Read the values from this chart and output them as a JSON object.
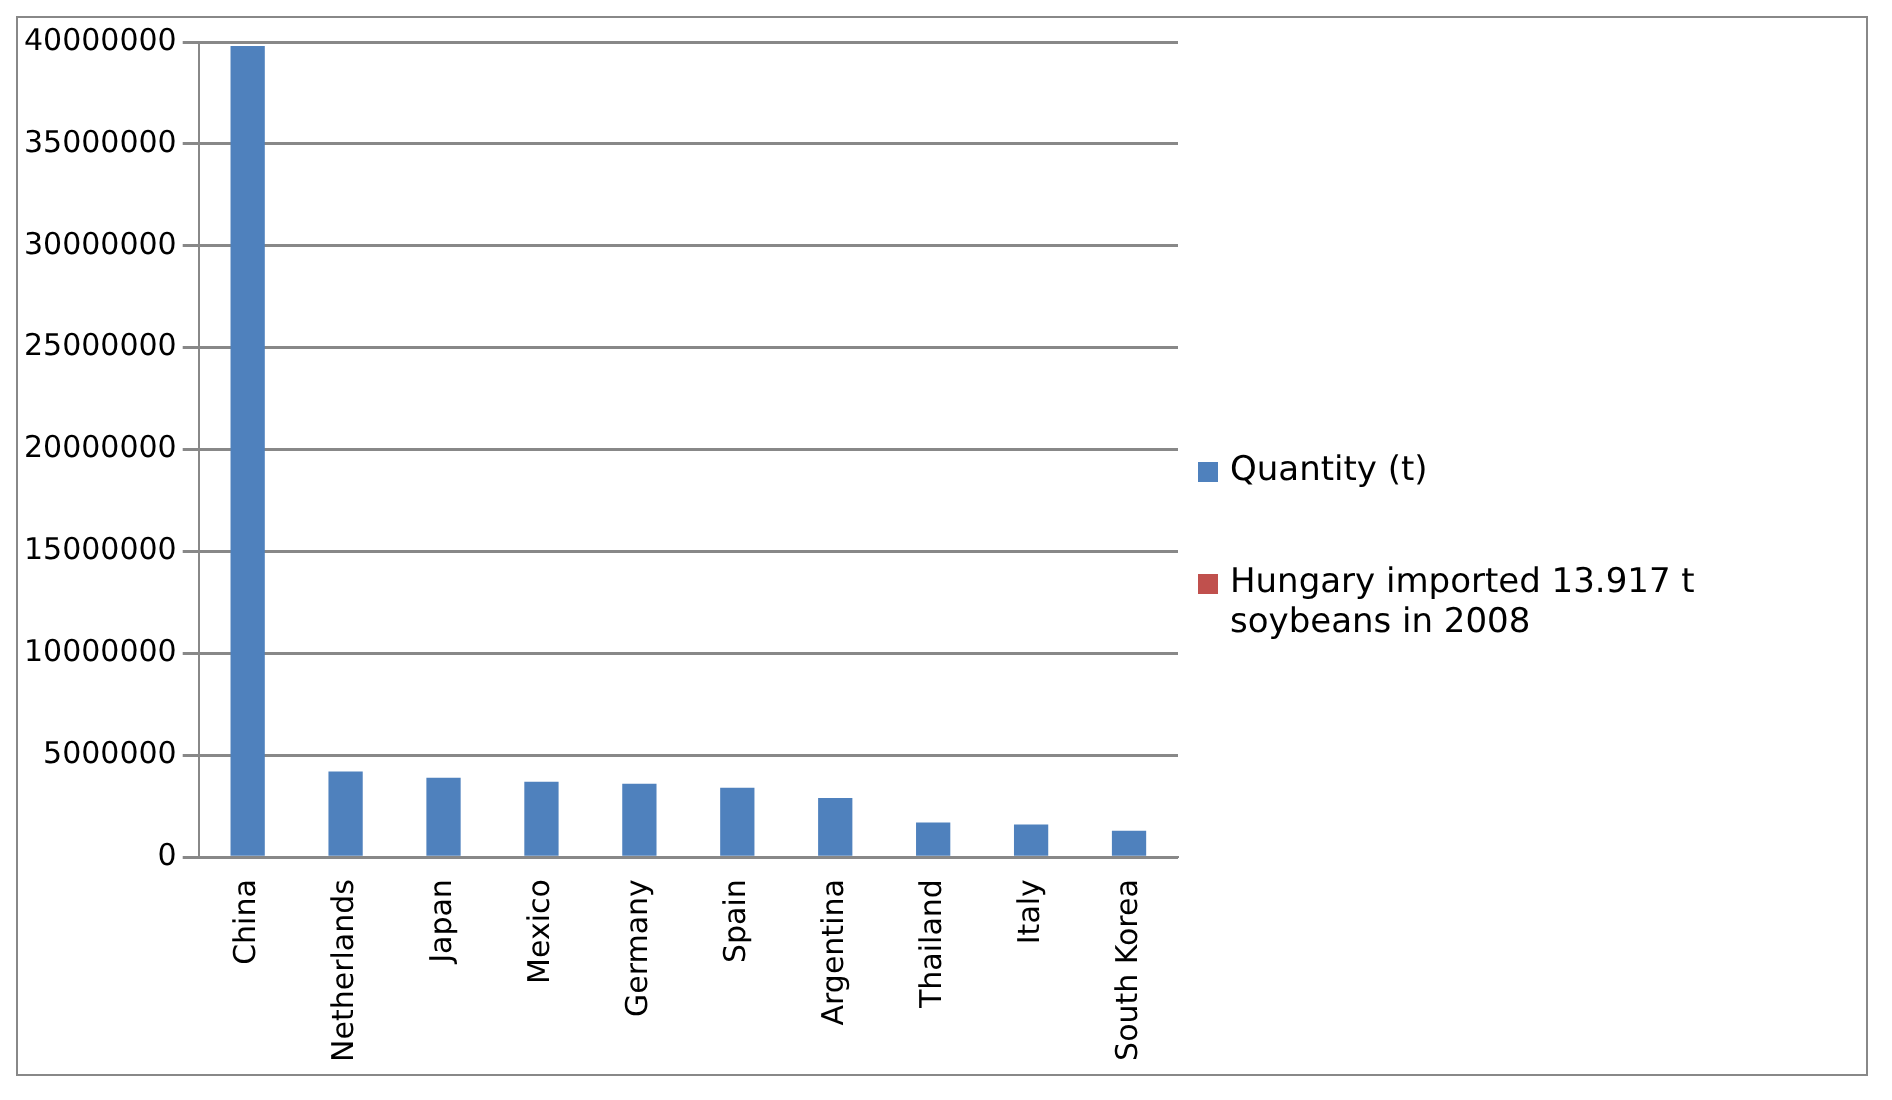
{
  "chart_data": {
    "type": "bar",
    "categories": [
      "China",
      "Netherlands",
      "Japan",
      "Mexico",
      "Germany",
      "Spain",
      "Argentina",
      "Thailand",
      "Italy",
      "South Korea"
    ],
    "series": [
      {
        "name": "Quantity (t)",
        "color": "#4f81bd",
        "values": [
          39800000,
          4200000,
          3900000,
          3700000,
          3600000,
          3400000,
          2900000,
          1700000,
          1600000,
          1300000
        ]
      },
      {
        "name": "Hungary imported 13.917 t soybeans in 2008",
        "color": "#c0504d",
        "values": [
          null,
          null,
          null,
          null,
          null,
          null,
          null,
          null,
          null,
          null
        ]
      }
    ],
    "ylim": [
      0,
      40000000
    ],
    "yticks": [
      0,
      5000000,
      10000000,
      15000000,
      20000000,
      25000000,
      30000000,
      35000000,
      40000000
    ],
    "grid": "y",
    "legend": "right"
  }
}
